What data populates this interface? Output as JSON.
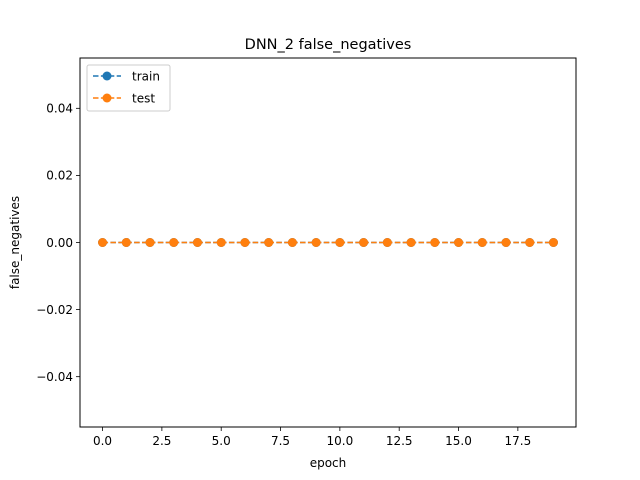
{
  "chart_data": {
    "type": "line",
    "title": "DNN_2 false_negatives",
    "xlabel": "epoch",
    "ylabel": "false_negatives",
    "xlim": [
      -0.95,
      19.95
    ],
    "ylim": [
      -0.055,
      0.055
    ],
    "x_ticks": [
      0.0,
      2.5,
      5.0,
      7.5,
      10.0,
      12.5,
      15.0,
      17.5
    ],
    "x_tick_labels": [
      "0.0",
      "2.5",
      "5.0",
      "7.5",
      "10.0",
      "12.5",
      "15.0",
      "17.5"
    ],
    "y_ticks": [
      -0.04,
      -0.02,
      0.0,
      0.02,
      0.04
    ],
    "y_tick_labels": [
      "−0.04",
      "−0.02",
      "0.00",
      "0.02",
      "0.04"
    ],
    "grid": false,
    "legend_position": "top-left",
    "x": [
      0,
      1,
      2,
      3,
      4,
      5,
      6,
      7,
      8,
      9,
      10,
      11,
      12,
      13,
      14,
      15,
      16,
      17,
      18,
      19
    ],
    "series": [
      {
        "name": "train",
        "color": "#1f77b4",
        "line_style": "dashed",
        "marker": "circle",
        "values": [
          0,
          0,
          0,
          0,
          0,
          0,
          0,
          0,
          0,
          0,
          0,
          0,
          0,
          0,
          0,
          0,
          0,
          0,
          0,
          0
        ]
      },
      {
        "name": "test",
        "color": "#ff7f0e",
        "line_style": "dashed",
        "marker": "circle",
        "values": [
          0,
          0,
          0,
          0,
          0,
          0,
          0,
          0,
          0,
          0,
          0,
          0,
          0,
          0,
          0,
          0,
          0,
          0,
          0,
          0
        ]
      }
    ]
  }
}
